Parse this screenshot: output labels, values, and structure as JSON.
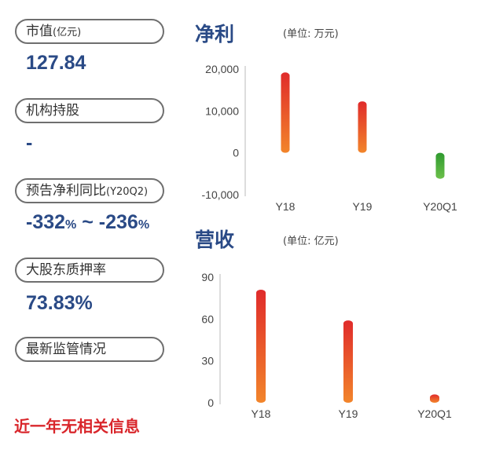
{
  "left_panel": {
    "market_cap": {
      "label": "市值",
      "label_unit": "(亿元)",
      "value": "127.84"
    },
    "institution": {
      "label": "机构持股",
      "value": "-"
    },
    "forecast": {
      "label": "预告净利同比",
      "label_period": "(Y20Q2)",
      "value_low": "-332",
      "value_high": "-236",
      "pct": "%",
      "sep": " ~ "
    },
    "pledge": {
      "label": "大股东质押率",
      "value": "73.83%"
    },
    "regulation": {
      "label": "最新监管情况",
      "note": "近一年无相关信息"
    }
  },
  "colors": {
    "bar_top": "#e02b2b",
    "bar_bottom": "#f2852b",
    "neg_top": "#2f9a2f",
    "neg_bottom": "#6cc04a",
    "title": "#2a4a86",
    "axis": "#bbbbbb"
  },
  "chart_data": [
    {
      "type": "bar",
      "title": "净利",
      "unit": "(单位: 万元)",
      "categories": [
        "Y18",
        "Y19",
        "Y20Q1"
      ],
      "values": [
        19200,
        12300,
        -6200
      ],
      "ylim": [
        -10000,
        20000
      ],
      "yticks": [
        20000,
        10000,
        0,
        -10000
      ],
      "ytick_labels": [
        "20,000",
        "10,000",
        "0",
        "-10,000"
      ],
      "grid": false
    },
    {
      "type": "bar",
      "title": "营收",
      "unit": "(单位: 亿元)",
      "categories": [
        "Y18",
        "Y19",
        "Y20Q1"
      ],
      "values": [
        81,
        59,
        6
      ],
      "ylim": [
        0,
        90
      ],
      "yticks": [
        90,
        60,
        30,
        0
      ],
      "ytick_labels": [
        "90",
        "60",
        "30",
        "0"
      ],
      "grid": false
    }
  ]
}
